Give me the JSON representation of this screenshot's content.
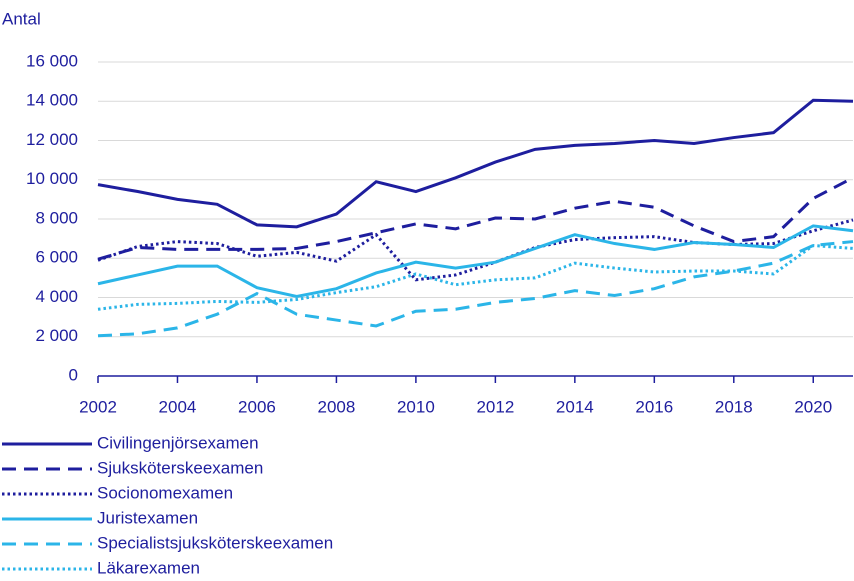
{
  "chart_data": {
    "type": "line",
    "y_label": "Antal",
    "x": [
      2002,
      2003,
      2004,
      2005,
      2006,
      2007,
      2008,
      2009,
      2010,
      2011,
      2012,
      2013,
      2014,
      2015,
      2016,
      2017,
      2018,
      2019,
      2020,
      2021
    ],
    "xlim": [
      2002,
      2021
    ],
    "xticks": [
      2002,
      2004,
      2006,
      2008,
      2010,
      2012,
      2014,
      2016,
      2018,
      2020
    ],
    "ylim": [
      0,
      16000
    ],
    "yticks": [
      0,
      {
        "value": 2000,
        "label": "2 000"
      },
      {
        "value": 4000,
        "label": "4 000"
      },
      {
        "value": 6000,
        "label": "6 000"
      },
      {
        "value": 8000,
        "label": "8 000"
      },
      {
        "value": 10000,
        "label": "10 000"
      },
      {
        "value": 12000,
        "label": "12 000"
      },
      {
        "value": 14000,
        "label": "14 000"
      },
      {
        "value": 16000,
        "label": "16 000"
      }
    ],
    "grid": true,
    "series": [
      {
        "name": "Civilingenjörsexamen",
        "color": "#1e1e9e",
        "dash": "solid",
        "values": [
          9750,
          9400,
          9000,
          8750,
          7700,
          7600,
          8250,
          9900,
          9400,
          10100,
          10900,
          11550,
          11750,
          11850,
          12000,
          11850,
          12150,
          12400,
          14050,
          14000
        ]
      },
      {
        "name": "Sjuksköterskeexamen",
        "color": "#1e1e9e",
        "dash": "dashed",
        "values": [
          5950,
          6550,
          6450,
          6450,
          6450,
          6500,
          6850,
          7300,
          7750,
          7500,
          8050,
          8000,
          8550,
          8900,
          8600,
          7650,
          6850,
          7100,
          9050,
          10100
        ]
      },
      {
        "name": "Socionomexamen",
        "color": "#1e1e9e",
        "dash": "dotted",
        "values": [
          5900,
          6600,
          6850,
          6750,
          6100,
          6300,
          5850,
          7200,
          4900,
          5150,
          5800,
          6550,
          6950,
          7050,
          7100,
          6800,
          6700,
          6750,
          7400,
          7950
        ]
      },
      {
        "name": "Juristexamen",
        "color": "#2bb5e8",
        "dash": "solid",
        "values": [
          4700,
          5150,
          5600,
          5600,
          4500,
          4050,
          4450,
          5250,
          5800,
          5500,
          5800,
          6500,
          7200,
          6750,
          6450,
          6800,
          6700,
          6550,
          7650,
          7400
        ]
      },
      {
        "name": "Specialistsjuksköterskeexamen",
        "color": "#2bb5e8",
        "dash": "dashed",
        "values": [
          2050,
          2150,
          2450,
          3150,
          4200,
          3150,
          2850,
          2550,
          3300,
          3400,
          3750,
          3950,
          4350,
          4100,
          4450,
          5050,
          5350,
          5750,
          6650,
          6850
        ]
      },
      {
        "name": "Läkarexamen",
        "color": "#2bb5e8",
        "dash": "dotted",
        "values": [
          3400,
          3650,
          3700,
          3800,
          3750,
          3900,
          4250,
          4550,
          5200,
          4650,
          4900,
          5000,
          5750,
          5500,
          5300,
          5350,
          5350,
          5200,
          6650,
          6500
        ]
      }
    ]
  }
}
